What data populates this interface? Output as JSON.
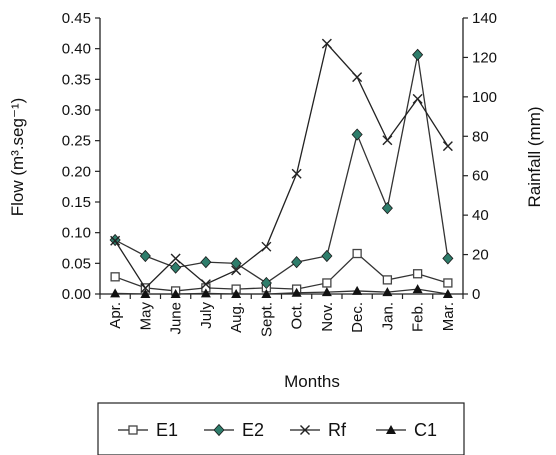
{
  "chart_data": {
    "type": "line",
    "categories": [
      "Apr.",
      "May",
      "June",
      "July",
      "Aug.",
      "Sept.",
      "Oct.",
      "Nov.",
      "Dec.",
      "Jan.",
      "Feb.",
      "Mar."
    ],
    "xlabel": "Months",
    "ylabel_left": "Flow (m³.seg⁻¹)",
    "ylabel_right": "Rainfall (mm)",
    "ylim_left": [
      0,
      0.45
    ],
    "yticks_left": [
      "0.00",
      "0.05",
      "0.10",
      "0.15",
      "0.20",
      "0.25",
      "0.30",
      "0.35",
      "0.40",
      "0.45"
    ],
    "ylim_right": [
      0,
      140
    ],
    "yticks_right": [
      "0",
      "20",
      "40",
      "60",
      "80",
      "100",
      "120",
      "140"
    ],
    "grid": false,
    "legend_position": "bottom",
    "series": [
      {
        "name": "E1",
        "axis": "left",
        "marker": "square-open",
        "color": "#333333",
        "values": [
          0.028,
          0.01,
          0.005,
          0.01,
          0.008,
          0.01,
          0.008,
          0.018,
          0.066,
          0.023,
          0.033,
          0.018
        ]
      },
      {
        "name": "E2",
        "axis": "left",
        "marker": "diamond",
        "color": "#2e7d6b",
        "values": [
          0.088,
          0.062,
          0.043,
          0.052,
          0.05,
          0.018,
          0.052,
          0.062,
          0.26,
          0.14,
          0.39,
          0.058
        ]
      },
      {
        "name": "Rf",
        "axis": "right",
        "marker": "x",
        "color": "#222222",
        "values": [
          27,
          3,
          18,
          5,
          12,
          24,
          61,
          127,
          110,
          78,
          99,
          75
        ]
      },
      {
        "name": "C1",
        "axis": "left",
        "marker": "triangle",
        "color": "#111111",
        "values": [
          0.001,
          0.0,
          0.0,
          0.001,
          0.0,
          0.0,
          0.002,
          0.003,
          0.005,
          0.003,
          0.008,
          0.0
        ]
      }
    ]
  }
}
